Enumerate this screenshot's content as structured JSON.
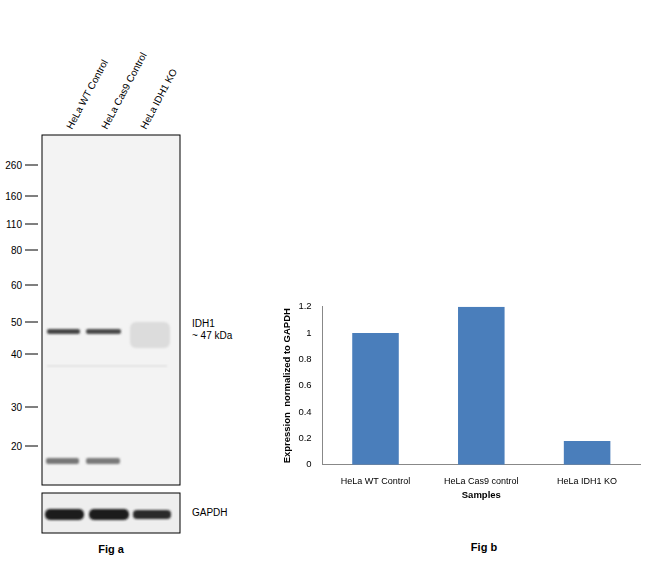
{
  "blot": {
    "lanes": [
      "HeLa WT Control",
      "HeLa Cas9 Control",
      "HeLa IDH1 KO"
    ],
    "markers": [
      260,
      160,
      110,
      80,
      60,
      50,
      40,
      30,
      20
    ],
    "target": "IDH1",
    "target_size": "~ 47 kDa",
    "loading_control": "GAPDH",
    "caption": "Fig a"
  },
  "chart_data": {
    "type": "bar",
    "categories": [
      "HeLa WT Control",
      "HeLa Cas9 control",
      "HeLa IDH1 KO"
    ],
    "values": [
      1.0,
      1.2,
      0.18
    ],
    "color": "#4a7ebb",
    "ylim": [
      0,
      1.2
    ],
    "yticks": [
      0,
      0.2,
      0.4,
      0.6,
      0.8,
      1,
      1.2
    ],
    "x_label": "Samples",
    "y_label": "Expression  normalized to GAPDH",
    "grid": false,
    "caption": "Fig b"
  }
}
